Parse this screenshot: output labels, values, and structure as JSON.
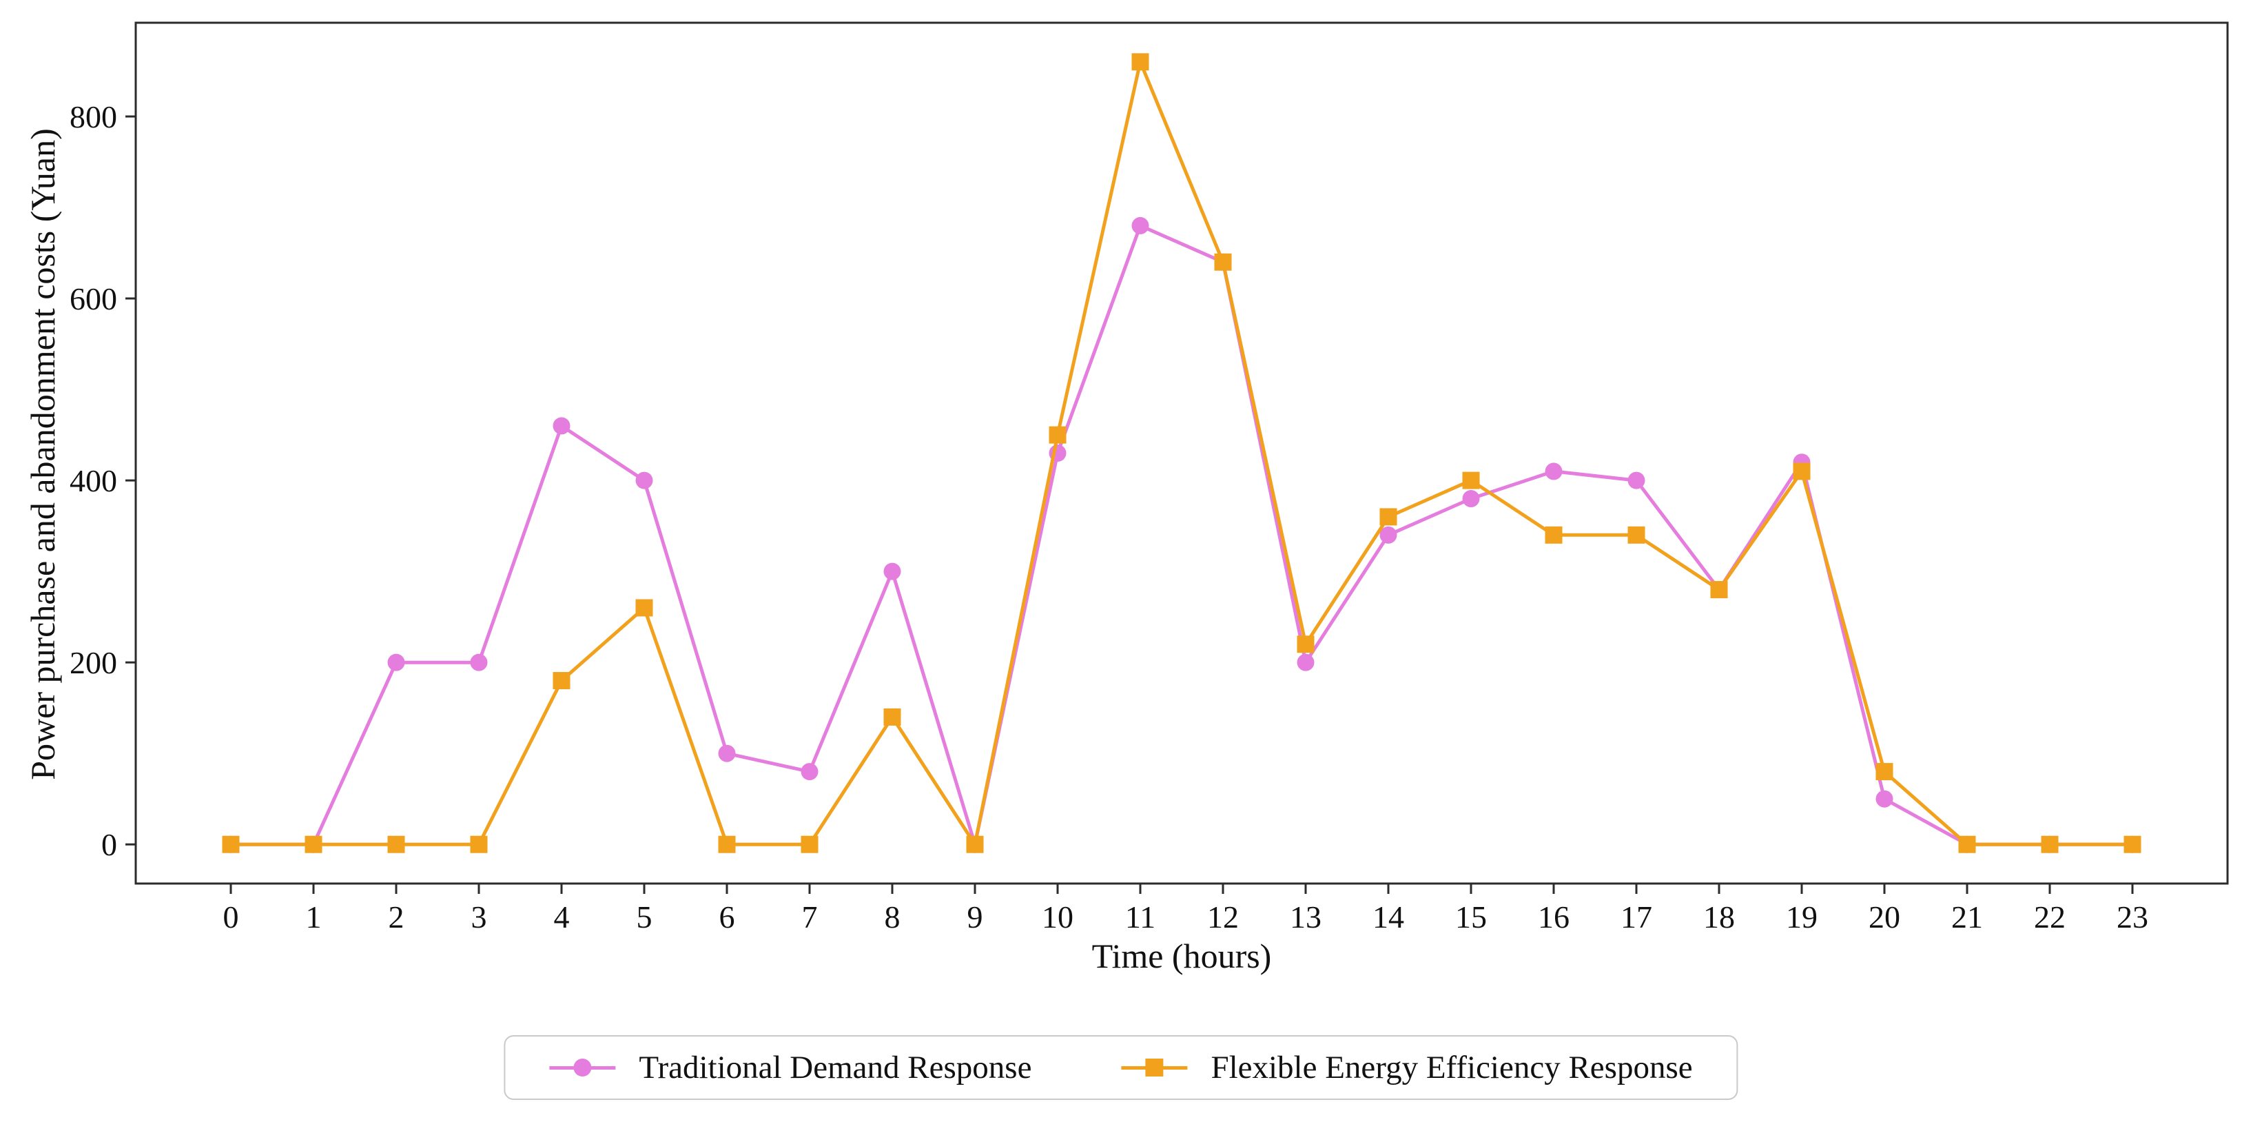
{
  "chart_data": {
    "type": "line",
    "title": "",
    "xlabel": "Time (hours)",
    "ylabel": "Power purchase and abandonment costs (Yuan)",
    "x": [
      0,
      1,
      2,
      3,
      4,
      5,
      6,
      7,
      8,
      9,
      10,
      11,
      12,
      13,
      14,
      15,
      16,
      17,
      18,
      19,
      20,
      21,
      22,
      23
    ],
    "xtick_labels": [
      "0",
      "1",
      "2",
      "3",
      "4",
      "5",
      "6",
      "7",
      "8",
      "9",
      "10",
      "11",
      "12",
      "13",
      "14",
      "15",
      "16",
      "17",
      "18",
      "19",
      "20",
      "21",
      "22",
      "23"
    ],
    "yticks": [
      0,
      200,
      400,
      600,
      800
    ],
    "ytick_labels": [
      "0",
      "200",
      "400",
      "600",
      "800"
    ],
    "xlim": [
      -1.15,
      24.15
    ],
    "ylim": [
      -43,
      903
    ],
    "grid": false,
    "legend_position": "bottom-center-outside",
    "axes_box": true,
    "series": [
      {
        "name": "Traditional Demand Response",
        "marker": "circle",
        "color": "#e57ddf",
        "values": [
          0,
          0,
          200,
          200,
          460,
          400,
          100,
          80,
          300,
          0,
          430,
          680,
          640,
          200,
          340,
          380,
          410,
          400,
          280,
          420,
          50,
          0,
          0,
          0
        ]
      },
      {
        "name": "Flexible Energy Efficiency Response",
        "marker": "square",
        "color": "#f2a11d",
        "values": [
          0,
          0,
          0,
          0,
          180,
          260,
          0,
          0,
          140,
          0,
          450,
          860,
          640,
          220,
          360,
          400,
          340,
          340,
          280,
          410,
          80,
          0,
          0,
          0
        ]
      }
    ]
  },
  "layout_colors": {
    "spine": "#2b2b2b",
    "tick": "#2b2b2b",
    "legend_border": "#c9c9c9"
  }
}
